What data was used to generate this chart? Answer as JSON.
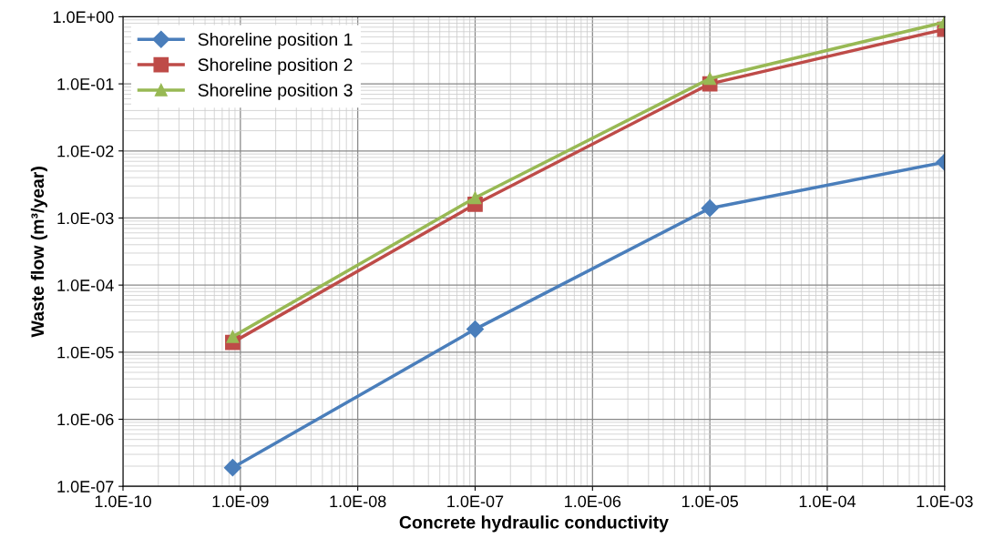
{
  "chart_data": {
    "type": "line",
    "xlabel": "Concrete hydraulic conductivity",
    "ylabel": "Waste flow (m³/year)",
    "x": [
      8.6e-10,
      1e-07,
      1e-05,
      0.001
    ],
    "log": "xy",
    "grid": true,
    "legend": "top left",
    "line_style": "solid",
    "xlim": [
      1e-10,
      0.001
    ],
    "ylim": [
      1e-07,
      1
    ],
    "xticks": [
      {
        "value": 1e-10,
        "label": "1.0E-10"
      },
      {
        "value": 1e-09,
        "label": "1.0E-09"
      },
      {
        "value": 1e-08,
        "label": "1.0E-08"
      },
      {
        "value": 1e-07,
        "label": "1.0E-07"
      },
      {
        "value": 1e-06,
        "label": "1.0E-06"
      },
      {
        "value": 1e-05,
        "label": "1.0E-05"
      },
      {
        "value": 0.0001,
        "label": "1.0E-04"
      },
      {
        "value": 0.001,
        "label": "1.0E-03"
      }
    ],
    "yticks": [
      {
        "value": 1e-07,
        "label": "1.0E-07"
      },
      {
        "value": 1e-06,
        "label": "1.0E-06"
      },
      {
        "value": 1e-05,
        "label": "1.0E-05"
      },
      {
        "value": 0.0001,
        "label": "1.0E-04"
      },
      {
        "value": 0.001,
        "label": "1.0E-03"
      },
      {
        "value": 0.01,
        "label": "1.0E-02"
      },
      {
        "value": 0.1,
        "label": "1.0E-01"
      },
      {
        "value": 1,
        "label": "1.0E+00"
      }
    ],
    "series": [
      {
        "name": "Shoreline position 1",
        "color": "#4a7ebb",
        "marker": "diamond",
        "values": [
          1.9e-07,
          2.2e-05,
          0.0014,
          0.0068
        ]
      },
      {
        "name": "Shoreline position 2",
        "color": "#be4b48",
        "marker": "square",
        "values": [
          1.4e-05,
          0.0016,
          0.1,
          0.65
        ]
      },
      {
        "name": "Shoreline position 3",
        "color": "#98b954",
        "marker": "triangle",
        "values": [
          1.7e-05,
          0.002,
          0.12,
          0.83
        ]
      }
    ]
  }
}
